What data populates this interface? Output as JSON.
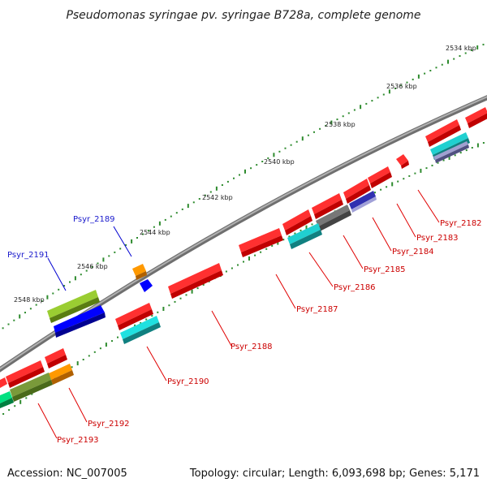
{
  "title": "Pseudomonas syringae pv. syringae B728a, complete genome",
  "footer": {
    "accession": "Accession: NC_007005",
    "summary": "Topology: circular; Length: 6,093,698 bp; Genes: 5,171"
  },
  "colors": {
    "backbone": "#8c8c8c",
    "tick": "#2e8b2e",
    "callout_red": "#e00000",
    "callout_blue": "#0000d0"
  },
  "scale_ticks": [
    {
      "label": "2534 kbp"
    },
    {
      "label": "2536 kbp"
    },
    {
      "label": "2538 kbp"
    },
    {
      "label": "2540 kbp"
    },
    {
      "label": "2542 kbp"
    },
    {
      "label": "2544 kbp"
    },
    {
      "label": "2546 kbp"
    },
    {
      "label": "2548 kbp"
    }
  ],
  "genes": [
    {
      "label": "Psyr_2182",
      "strand": "reverse",
      "color": "#ff0000"
    },
    {
      "label": "Psyr_2183",
      "strand": "reverse",
      "color": "#ff0000"
    },
    {
      "label": "Psyr_2184",
      "strand": "reverse",
      "color": "#ff0000"
    },
    {
      "label": "Psyr_2185",
      "strand": "reverse",
      "color": "#ff0000"
    },
    {
      "label": "Psyr_2186",
      "strand": "reverse",
      "color": "#ff0000"
    },
    {
      "label": "Psyr_2187",
      "strand": "reverse",
      "color": "#ff0000"
    },
    {
      "label": "Psyr_2188",
      "strand": "reverse",
      "color": "#ff0000"
    },
    {
      "label": "Psyr_2189",
      "strand": "forward",
      "color": "#0000ff"
    },
    {
      "label": "Psyr_2190",
      "strand": "reverse",
      "color": "#ff0000"
    },
    {
      "label": "Psyr_2191",
      "strand": "forward",
      "color": "#0000ff"
    },
    {
      "label": "Psyr_2192",
      "strand": "reverse",
      "color": "#ff9900"
    },
    {
      "label": "Psyr_2193",
      "strand": "reverse",
      "color": "#ff0000"
    }
  ],
  "feature_colors": {
    "red": "#ff0000",
    "cyan": "#00d8d8",
    "blue": "#0000ff",
    "orange": "#ff9900",
    "olive": "#6b8e23",
    "lime": "#9acd32",
    "gray": "#666666",
    "navy": "#1a1a8c",
    "lavender": "#9090c0",
    "green": "#00e080"
  }
}
